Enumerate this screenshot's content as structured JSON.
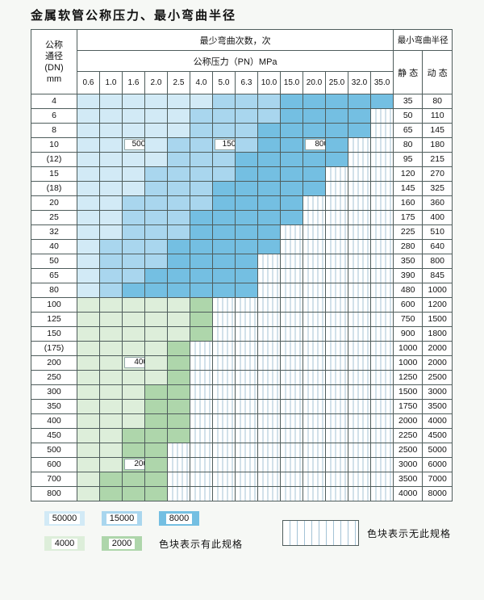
{
  "title": "金属软管公称压力、最小弯曲半径",
  "colors": {
    "c50000": "#d2eaf6",
    "c15000": "#a9d6ee",
    "c8000": "#74bfe2",
    "c4000": "#ddeeda",
    "c2000": "#aed6ab",
    "hatch": "#a4c3d6"
  },
  "header": {
    "dn_lines": [
      "公称",
      "通径",
      "(DN)",
      "mm"
    ],
    "bend_times": "最少弯曲次数，次",
    "pressure": "公称压力（PN）MPa",
    "radius": "最小弯曲半径",
    "static": "静 态",
    "dynamic": "动 态",
    "pressure_cols": [
      "0.6",
      "1.0",
      "1.6",
      "2.0",
      "2.5",
      "4.0",
      "5.0",
      "6.3",
      "10.0",
      "15.0",
      "20.0",
      "25.0",
      "32.0",
      "35.0"
    ]
  },
  "rows": [
    {
      "dn": "4",
      "bands": [
        [
          "c50000",
          6
        ],
        [
          "c15000",
          9
        ],
        [
          "c8000",
          14
        ]
      ],
      "static": "35",
      "dynamic": "80"
    },
    {
      "dn": "6",
      "bands": [
        [
          "c50000",
          5
        ],
        [
          "c15000",
          9
        ],
        [
          "c8000",
          13
        ]
      ],
      "static": "50",
      "dynamic": "110"
    },
    {
      "dn": "8",
      "bands": [
        [
          "c50000",
          5
        ],
        [
          "c15000",
          8
        ],
        [
          "c8000",
          13
        ]
      ],
      "static": "65",
      "dynamic": "145"
    },
    {
      "dn": "10",
      "bands": [
        [
          "c50000",
          4
        ],
        [
          "c15000",
          8
        ],
        [
          "c8000",
          12
        ]
      ],
      "static": "80",
      "dynamic": "180"
    },
    {
      "dn": "(12)",
      "bands": [
        [
          "c50000",
          4
        ],
        [
          "c15000",
          7
        ],
        [
          "c8000",
          12
        ]
      ],
      "static": "95",
      "dynamic": "215"
    },
    {
      "dn": "15",
      "bands": [
        [
          "c50000",
          3
        ],
        [
          "c15000",
          7
        ],
        [
          "c8000",
          11
        ]
      ],
      "static": "120",
      "dynamic": "270"
    },
    {
      "dn": "(18)",
      "bands": [
        [
          "c50000",
          3
        ],
        [
          "c15000",
          6
        ],
        [
          "c8000",
          11
        ]
      ],
      "static": "145",
      "dynamic": "325"
    },
    {
      "dn": "20",
      "bands": [
        [
          "c50000",
          2
        ],
        [
          "c15000",
          6
        ],
        [
          "c8000",
          10
        ]
      ],
      "static": "160",
      "dynamic": "360"
    },
    {
      "dn": "25",
      "bands": [
        [
          "c50000",
          2
        ],
        [
          "c15000",
          5
        ],
        [
          "c8000",
          10
        ]
      ],
      "static": "175",
      "dynamic": "400"
    },
    {
      "dn": "32",
      "bands": [
        [
          "c50000",
          2
        ],
        [
          "c15000",
          5
        ],
        [
          "c8000",
          9
        ]
      ],
      "static": "225",
      "dynamic": "510"
    },
    {
      "dn": "40",
      "bands": [
        [
          "c50000",
          1
        ],
        [
          "c15000",
          4
        ],
        [
          "c8000",
          9
        ]
      ],
      "static": "280",
      "dynamic": "640"
    },
    {
      "dn": "50",
      "bands": [
        [
          "c50000",
          1
        ],
        [
          "c15000",
          4
        ],
        [
          "c8000",
          8
        ]
      ],
      "static": "350",
      "dynamic": "800"
    },
    {
      "dn": "65",
      "bands": [
        [
          "c50000",
          1
        ],
        [
          "c15000",
          3
        ],
        [
          "c8000",
          8
        ]
      ],
      "static": "390",
      "dynamic": "845"
    },
    {
      "dn": "80",
      "bands": [
        [
          "c50000",
          1
        ],
        [
          "c15000",
          2
        ],
        [
          "c8000",
          8
        ]
      ],
      "static": "480",
      "dynamic": "1000"
    },
    {
      "dn": "100",
      "bands": [
        [
          "c4000",
          5
        ],
        [
          "c2000",
          6
        ]
      ],
      "static": "600",
      "dynamic": "1200"
    },
    {
      "dn": "125",
      "bands": [
        [
          "c4000",
          5
        ],
        [
          "c2000",
          6
        ]
      ],
      "static": "750",
      "dynamic": "1500"
    },
    {
      "dn": "150",
      "bands": [
        [
          "c4000",
          5
        ],
        [
          "c2000",
          6
        ]
      ],
      "static": "900",
      "dynamic": "1800"
    },
    {
      "dn": "(175)",
      "bands": [
        [
          "c4000",
          4
        ],
        [
          "c2000",
          5
        ]
      ],
      "static": "1000",
      "dynamic": "2000"
    },
    {
      "dn": "200",
      "bands": [
        [
          "c4000",
          4
        ],
        [
          "c2000",
          5
        ]
      ],
      "static": "1000",
      "dynamic": "2000"
    },
    {
      "dn": "250",
      "bands": [
        [
          "c4000",
          4
        ],
        [
          "c2000",
          5
        ]
      ],
      "static": "1250",
      "dynamic": "2500"
    },
    {
      "dn": "300",
      "bands": [
        [
          "c4000",
          3
        ],
        [
          "c2000",
          5
        ]
      ],
      "static": "1500",
      "dynamic": "3000"
    },
    {
      "dn": "350",
      "bands": [
        [
          "c4000",
          3
        ],
        [
          "c2000",
          5
        ]
      ],
      "static": "1750",
      "dynamic": "3500"
    },
    {
      "dn": "400",
      "bands": [
        [
          "c4000",
          3
        ],
        [
          "c2000",
          5
        ]
      ],
      "static": "2000",
      "dynamic": "4000"
    },
    {
      "dn": "450",
      "bands": [
        [
          "c4000",
          2
        ],
        [
          "c2000",
          5
        ]
      ],
      "static": "2250",
      "dynamic": "4500"
    },
    {
      "dn": "500",
      "bands": [
        [
          "c4000",
          2
        ],
        [
          "c2000",
          4
        ]
      ],
      "static": "2500",
      "dynamic": "5000"
    },
    {
      "dn": "600",
      "bands": [
        [
          "c4000",
          2
        ],
        [
          "c2000",
          4
        ]
      ],
      "static": "3000",
      "dynamic": "6000"
    },
    {
      "dn": "700",
      "bands": [
        [
          "c4000",
          1
        ],
        [
          "c2000",
          4
        ]
      ],
      "static": "3500",
      "dynamic": "7000"
    },
    {
      "dn": "800",
      "bands": [
        [
          "c4000",
          1
        ],
        [
          "c2000",
          4
        ]
      ],
      "static": "4000",
      "dynamic": "8000"
    }
  ],
  "overlay_labels": [
    {
      "text": "50000",
      "dn": "10",
      "col": 3
    },
    {
      "text": "15000",
      "dn": "10",
      "col": 7
    },
    {
      "text": "8000",
      "dn": "10",
      "col": 11
    },
    {
      "text": "4000",
      "dn": "200",
      "col": 3
    },
    {
      "text": "2000",
      "dn": "600",
      "col": 3
    }
  ],
  "legend": {
    "row1": [
      {
        "value": "50000",
        "color": "c50000"
      },
      {
        "value": "15000",
        "color": "c15000"
      },
      {
        "value": "8000",
        "color": "c8000"
      }
    ],
    "row2": [
      {
        "value": "4000",
        "color": "c4000"
      },
      {
        "value": "2000",
        "color": "c2000"
      }
    ],
    "has_spec_note": "色块表示有此规格",
    "no_spec_note": "色块表示无此规格"
  }
}
